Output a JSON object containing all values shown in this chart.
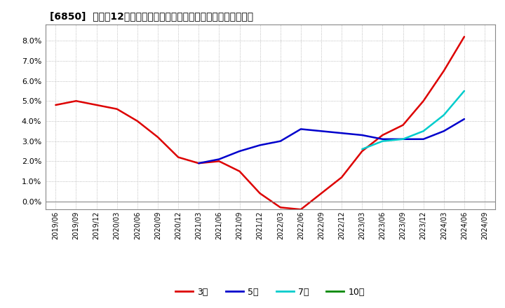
{
  "title": "[6850]  売上高12か月移動合計の対前年同期増減率の平均値の推移",
  "background_color": "#ffffff",
  "plot_bg_color": "#ffffff",
  "grid_color": "#aaaaaa",
  "ylim": [
    -0.004,
    0.088
  ],
  "yticks": [
    0.0,
    0.01,
    0.02,
    0.03,
    0.04,
    0.05,
    0.06,
    0.07,
    0.08
  ],
  "series": {
    "3年": {
      "color": "#dd0000",
      "x": [
        "2019/06",
        "2019/09",
        "2019/12",
        "2020/03",
        "2020/06",
        "2020/09",
        "2020/12",
        "2021/03",
        "2021/06",
        "2021/09",
        "2021/12",
        "2022/03",
        "2022/06",
        "2022/09",
        "2022/12",
        "2023/03",
        "2023/06",
        "2023/09",
        "2023/12",
        "2024/03",
        "2024/06"
      ],
      "y": [
        0.048,
        0.05,
        0.048,
        0.046,
        0.04,
        0.032,
        0.022,
        0.019,
        0.02,
        0.015,
        0.004,
        -0.003,
        -0.004,
        0.004,
        0.012,
        0.025,
        0.033,
        0.038,
        0.05,
        0.065,
        0.082
      ]
    },
    "5年": {
      "color": "#0000cc",
      "x": [
        "2021/03",
        "2021/06",
        "2021/09",
        "2021/12",
        "2022/03",
        "2022/06",
        "2022/09",
        "2022/12",
        "2023/03",
        "2023/06",
        "2023/09",
        "2023/12",
        "2024/03",
        "2024/06"
      ],
      "y": [
        0.019,
        0.021,
        0.025,
        0.028,
        0.03,
        0.036,
        0.035,
        0.034,
        0.033,
        0.031,
        0.031,
        0.031,
        0.035,
        0.041
      ]
    },
    "7年": {
      "color": "#00cccc",
      "x": [
        "2023/03",
        "2023/06",
        "2023/09",
        "2023/12",
        "2024/03",
        "2024/06"
      ],
      "y": [
        0.026,
        0.03,
        0.031,
        0.035,
        0.043,
        0.055
      ]
    },
    "10年": {
      "color": "#008800",
      "x": [],
      "y": []
    }
  },
  "xtick_labels": [
    "2019/06",
    "2019/09",
    "2019/12",
    "2020/03",
    "2020/06",
    "2020/09",
    "2020/12",
    "2021/03",
    "2021/06",
    "2021/09",
    "2021/12",
    "2022/03",
    "2022/06",
    "2022/09",
    "2022/12",
    "2023/03",
    "2023/06",
    "2023/09",
    "2023/12",
    "2024/03",
    "2024/06",
    "2024/09"
  ],
  "legend": {
    "entries": [
      "3年",
      "5年",
      "7年",
      "10年"
    ],
    "colors": [
      "#dd0000",
      "#0000cc",
      "#00cccc",
      "#008800"
    ]
  }
}
